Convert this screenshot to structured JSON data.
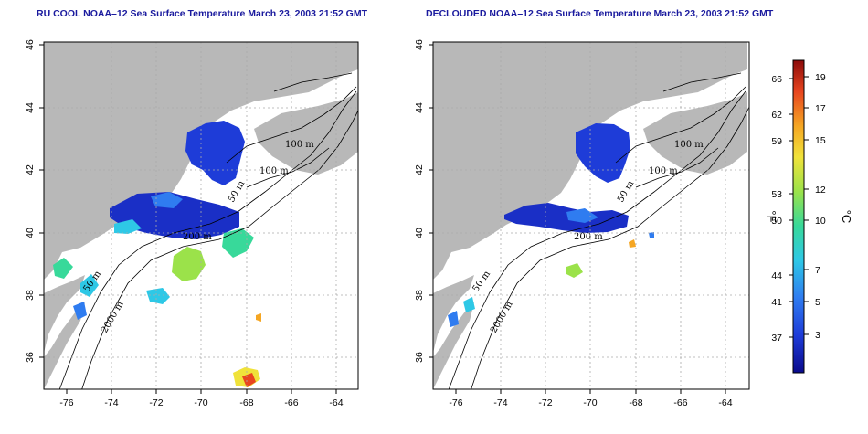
{
  "panels": [
    {
      "title": "RU COOL NOAA–12 Sea Surface Temperature March 23, 2003 21:52 GMT",
      "x_ticks": [
        "-76",
        "-74",
        "-72",
        "-70",
        "-68",
        "-66",
        "-64"
      ],
      "y_ticks": [
        "36",
        "38",
        "40",
        "42",
        "44",
        "46"
      ],
      "contour_labels": [
        "100 m",
        "100 m",
        "50 m",
        "200 m",
        "50 m",
        "2000 m"
      ]
    },
    {
      "title": "DECLOUDED NOAA–12 Sea Surface Temperature March 23, 2003 21:52 GMT",
      "x_ticks": [
        "-76",
        "-74",
        "-72",
        "-70",
        "-68",
        "-66",
        "-64"
      ],
      "y_ticks": [
        "36",
        "38",
        "40",
        "42",
        "44",
        "46"
      ],
      "contour_labels": [
        "100 m",
        "100 m",
        "50 m",
        "200 m",
        "50 m",
        "2000 m"
      ]
    }
  ],
  "colorbar": {
    "fahrenheit_unit": "°F",
    "celsius_unit": "°C",
    "fahrenheit_ticks": [
      "66",
      "62",
      "59",
      "53",
      "50",
      "44",
      "41",
      "37"
    ],
    "celsius_ticks": [
      "19",
      "17",
      "15",
      "12",
      "10",
      "7",
      "5",
      "3"
    ],
    "colors": [
      "#0a0a8c",
      "#1e3cd8",
      "#2f7cf0",
      "#2ec8e6",
      "#38d99a",
      "#9be24a",
      "#f0e23a",
      "#f5a623",
      "#e8451f",
      "#8b0a0a"
    ]
  },
  "colors": {
    "land": "#b8b8b8",
    "title": "#1a1a9e",
    "grid": "#aaaaaa"
  }
}
